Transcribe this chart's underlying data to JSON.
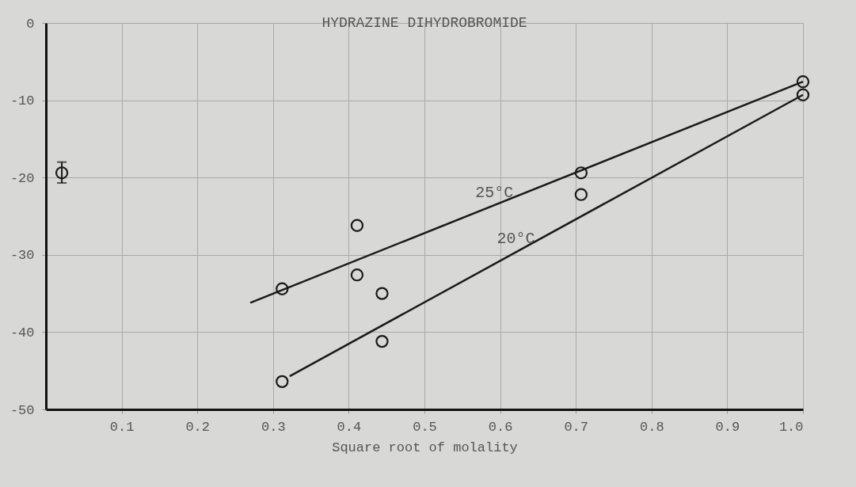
{
  "chart_data": {
    "type": "scatter",
    "title": "HYDRAZINE DIHYDROBROMIDE",
    "xlabel": "Square root of molality",
    "xlim": [
      0,
      1.0
    ],
    "ylim": [
      -50,
      0
    ],
    "xticks": [
      0.1,
      0.2,
      0.3,
      0.4,
      0.5,
      0.6,
      0.7,
      0.8,
      0.9,
      {
        "value": 1.0,
        "label": "1.0"
      }
    ],
    "yticks": [
      0,
      -10,
      -20,
      -30,
      -40,
      -50
    ],
    "grid": true,
    "marker": "circle",
    "series": [
      {
        "color": "#1a1a1a",
        "x": [
          0.312,
          0.312,
          0.411,
          0.411,
          0.444,
          0.444,
          0.707,
          0.707,
          1.0,
          1.0
        ],
        "values": [
          -34.4,
          -46.4,
          -26.2,
          -32.6,
          -35.0,
          -41.2,
          -19.4,
          -22.2,
          -7.6,
          -9.3
        ]
      },
      {
        "color": "#1a1a1a",
        "x": [
          0.021
        ],
        "values": [
          -19.4
        ],
        "errors": [
          [
            -20.7,
            -18.0
          ]
        ]
      },
      {
        "type": "line",
        "marker": "none",
        "name": "25°C",
        "color": "#1a1a1a",
        "x": [
          0.27,
          1.0
        ],
        "values": [
          -36.2,
          -7.6
        ]
      },
      {
        "type": "line",
        "marker": "none",
        "name": "20°C",
        "color": "#1a1a1a",
        "x": [
          0.322,
          1.0
        ],
        "values": [
          -45.7,
          -9.3
        ]
      }
    ]
  }
}
